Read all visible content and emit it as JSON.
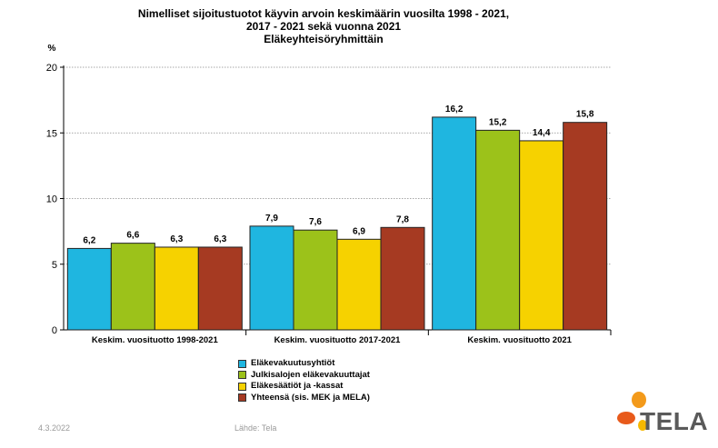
{
  "chart_data": {
    "type": "bar",
    "title_lines": [
      "Nimelliset sijoitustuotot käyvin arvoin keskimäärin vuosilta 1998 - 2021,",
      "2017 - 2021 sekä vuonna 2021",
      "Eläkeyhteisöryhmittäin"
    ],
    "ylabel": "%",
    "ylim": [
      0,
      20
    ],
    "yticks": [
      0,
      5,
      10,
      15,
      20
    ],
    "grid": true,
    "categories": [
      "Keskim. vuosituotto 1998-2021",
      "Keskim. vuosituotto 2017-2021",
      "Keskim. vuosituotto 2021"
    ],
    "series": [
      {
        "name": "Eläkevakuutusyhtiöt",
        "color": "#1fb6e0",
        "values": [
          6.2,
          7.9,
          16.2
        ],
        "labels": [
          "6,2",
          "7,9",
          "16,2"
        ]
      },
      {
        "name": "Julkisalojen eläkevakuuttajat",
        "color": "#9cc21a",
        "values": [
          6.6,
          7.6,
          15.2
        ],
        "labels": [
          "6,6",
          "7,6",
          "15,2"
        ]
      },
      {
        "name": "Eläkesäätiöt ja -kassat",
        "color": "#f6d200",
        "values": [
          6.3,
          6.9,
          14.4
        ],
        "labels": [
          "6,3",
          "6,9",
          "14,4"
        ]
      },
      {
        "name": "Yhteensä (sis. MEK ja MELA)",
        "color": "#a63a22",
        "values": [
          6.3,
          7.8,
          15.8
        ],
        "labels": [
          "6,3",
          "7,8",
          "15,8"
        ]
      }
    ],
    "legend_position": "bottom-center"
  },
  "footer": {
    "date": "4.3.2022",
    "source": "Lähde: Tela"
  },
  "logo": {
    "text": "TELA",
    "colors": [
      "#f39a1b",
      "#e85a1b",
      "#f6b800"
    ]
  }
}
